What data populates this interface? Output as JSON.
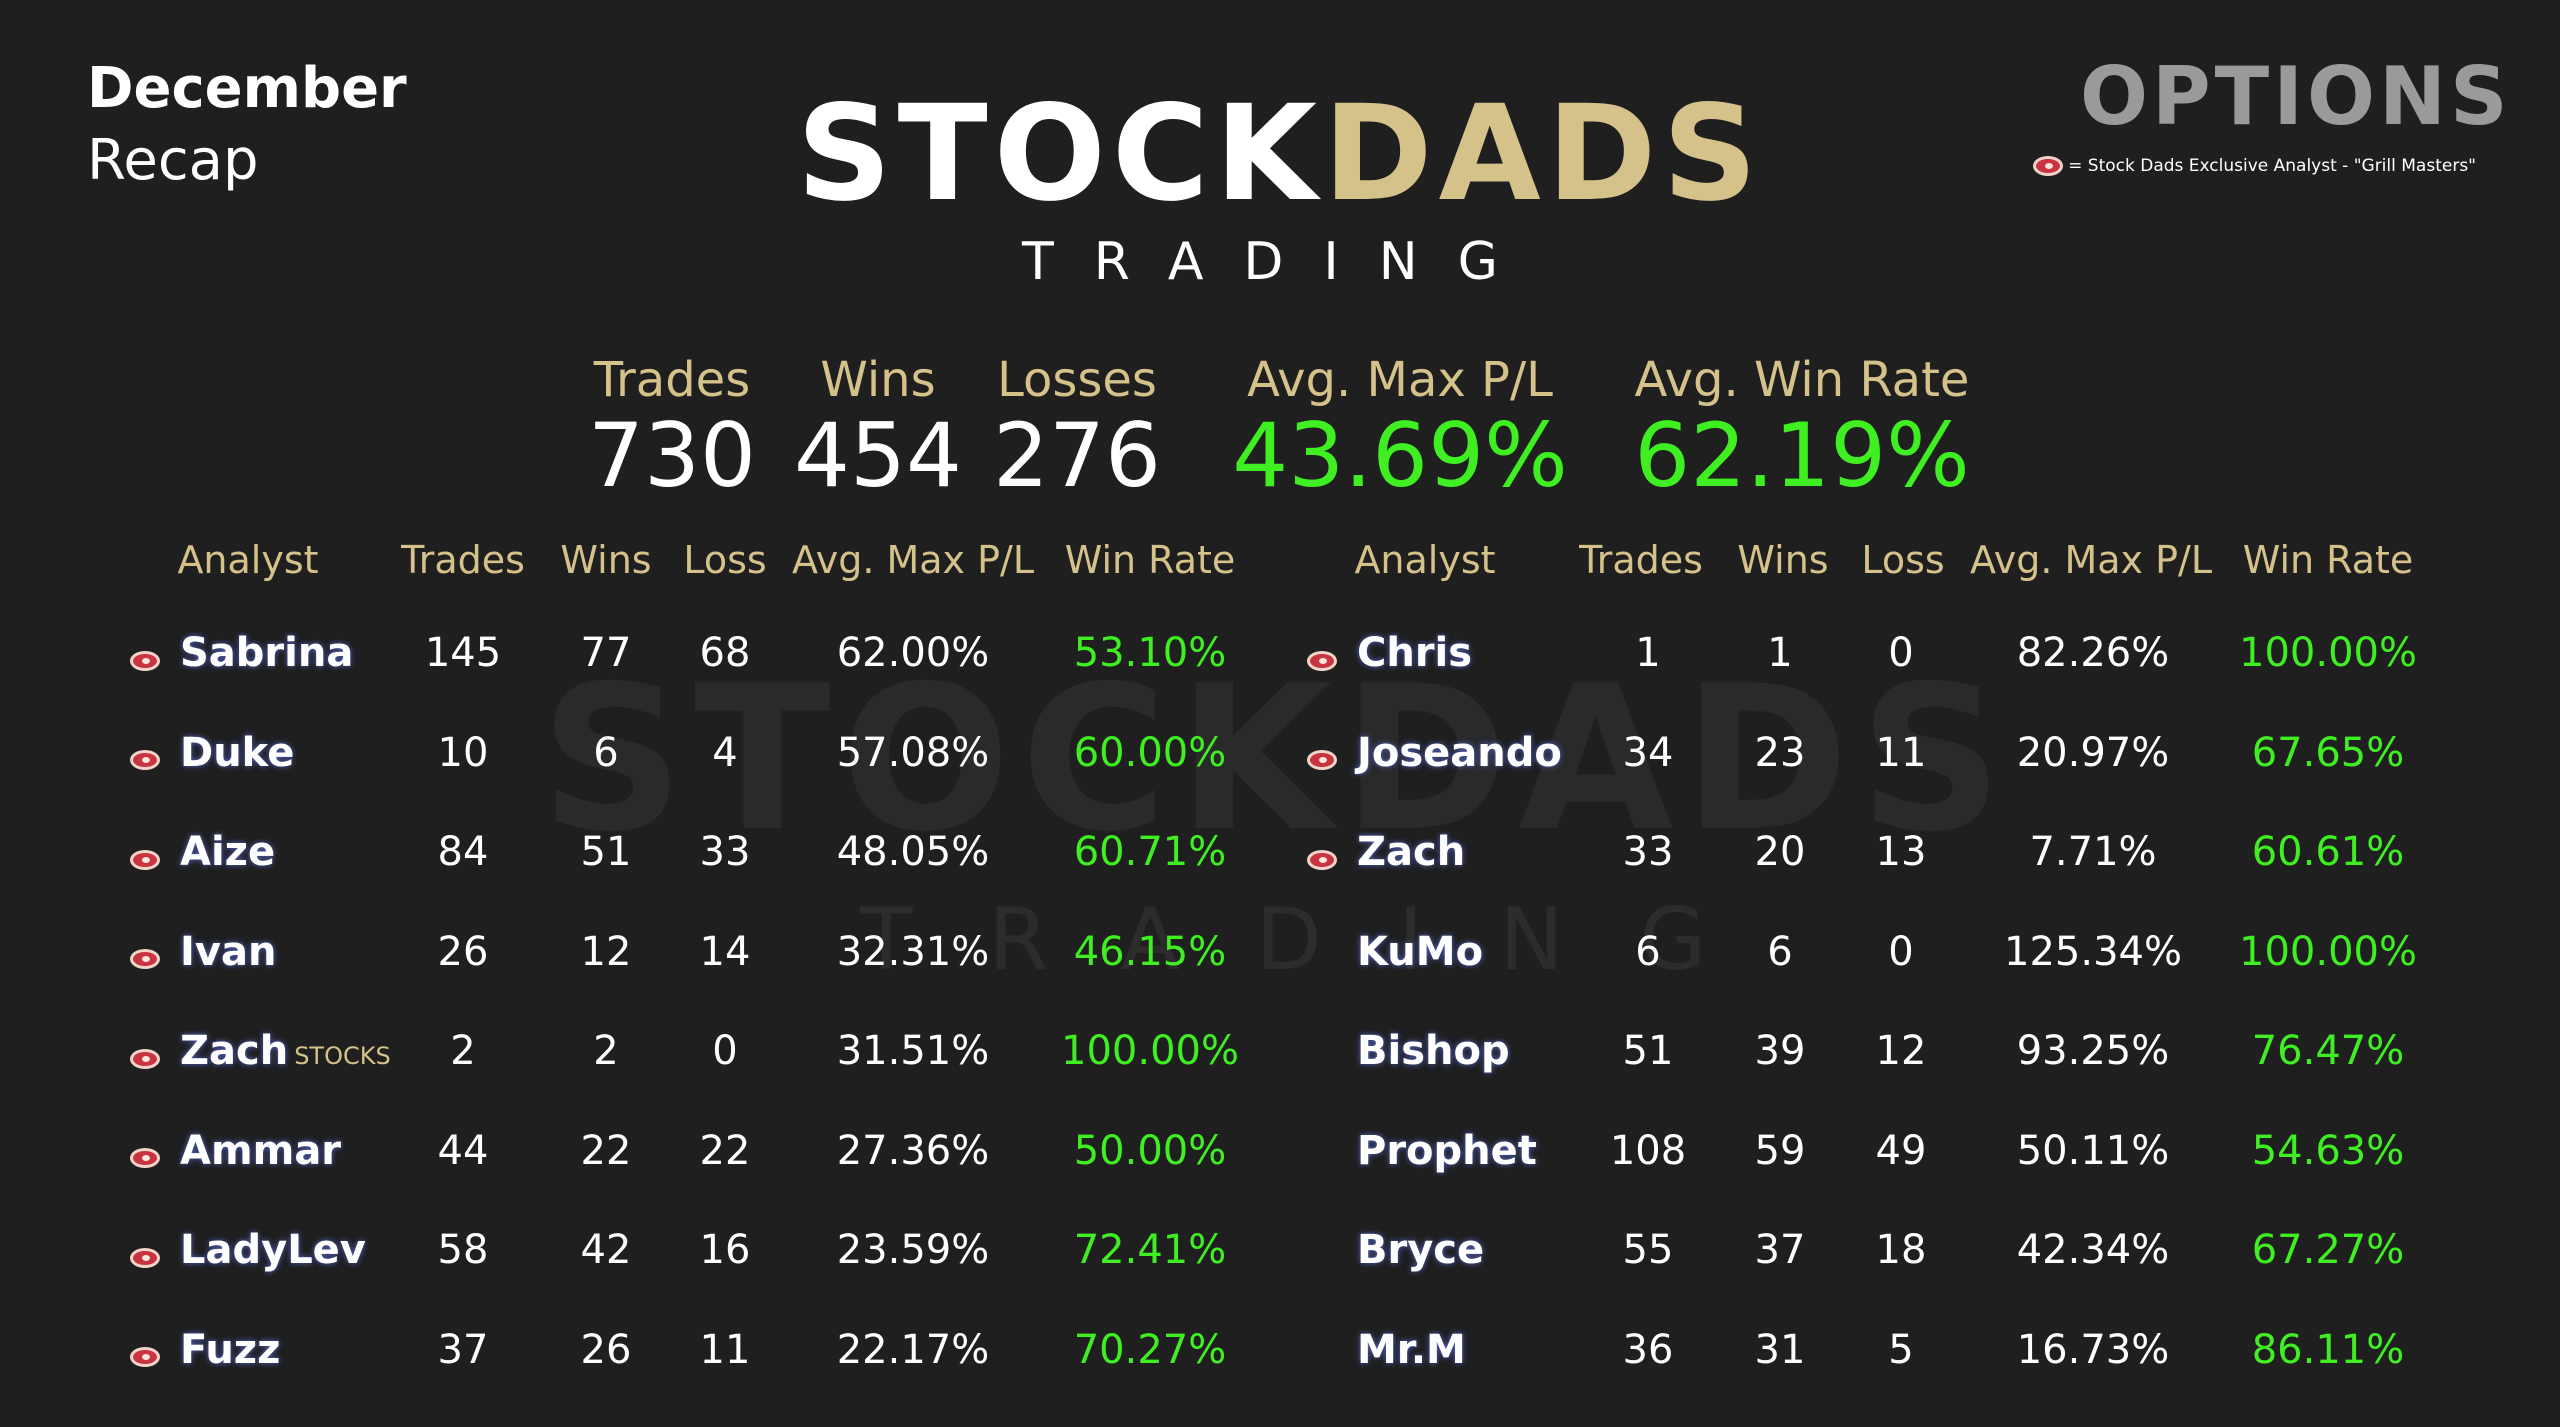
{
  "header": {
    "month": "December",
    "subtitle": "Recap"
  },
  "logo": {
    "word_left": "STOCK",
    "word_right": "DADS",
    "sub": "TRADING"
  },
  "category": "OPTIONS",
  "legend": {
    "text": "= Stock Dads Exclusive Analyst - \"Grill Masters\"",
    "icon": "steak-icon"
  },
  "summary": [
    {
      "label": "Trades",
      "value": "730"
    },
    {
      "label": "Wins",
      "value": "454"
    },
    {
      "label": "Losses",
      "value": "276"
    },
    {
      "label": "Avg. Max P/L",
      "value": "43.69%"
    },
    {
      "label": "Avg. Win Rate",
      "value": "62.19%"
    }
  ],
  "columns": [
    "Analyst",
    "Trades",
    "Wins",
    "Loss",
    "Avg. Max P/L",
    "Win Rate"
  ],
  "left_table": [
    {
      "name": "Sabrina",
      "sub": "",
      "grill": true,
      "trades": "145",
      "wins": "77",
      "loss": "68",
      "avg": "62.00%",
      "rate": "53.10%"
    },
    {
      "name": "Duke",
      "sub": "",
      "grill": true,
      "trades": "10",
      "wins": "6",
      "loss": "4",
      "avg": "57.08%",
      "rate": "60.00%"
    },
    {
      "name": "Aize",
      "sub": "",
      "grill": true,
      "trades": "84",
      "wins": "51",
      "loss": "33",
      "avg": "48.05%",
      "rate": "60.71%"
    },
    {
      "name": "Ivan",
      "sub": "",
      "grill": true,
      "trades": "26",
      "wins": "12",
      "loss": "14",
      "avg": "32.31%",
      "rate": "46.15%"
    },
    {
      "name": "Zach",
      "sub": "STOCKS",
      "grill": true,
      "trades": "2",
      "wins": "2",
      "loss": "0",
      "avg": "31.51%",
      "rate": "100.00%"
    },
    {
      "name": "Ammar",
      "sub": "",
      "grill": true,
      "trades": "44",
      "wins": "22",
      "loss": "22",
      "avg": "27.36%",
      "rate": "50.00%"
    },
    {
      "name": "LadyLev",
      "sub": "",
      "grill": true,
      "trades": "58",
      "wins": "42",
      "loss": "16",
      "avg": "23.59%",
      "rate": "72.41%"
    },
    {
      "name": "Fuzz",
      "sub": "",
      "grill": true,
      "trades": "37",
      "wins": "26",
      "loss": "11",
      "avg": "22.17%",
      "rate": "70.27%"
    }
  ],
  "right_table": [
    {
      "name": "Chris",
      "sub": "",
      "grill": true,
      "trades": "1",
      "wins": "1",
      "loss": "0",
      "avg": "82.26%",
      "rate": "100.00%"
    },
    {
      "name": "Joseando",
      "sub": "",
      "grill": true,
      "trades": "34",
      "wins": "23",
      "loss": "11",
      "avg": "20.97%",
      "rate": "67.65%"
    },
    {
      "name": "Zach",
      "sub": "",
      "grill": true,
      "trades": "33",
      "wins": "20",
      "loss": "13",
      "avg": "7.71%",
      "rate": "60.61%"
    },
    {
      "name": "KuMo",
      "sub": "",
      "grill": false,
      "trades": "6",
      "wins": "6",
      "loss": "0",
      "avg": "125.34%",
      "rate": "100.00%"
    },
    {
      "name": "Bishop",
      "sub": "",
      "grill": false,
      "trades": "51",
      "wins": "39",
      "loss": "12",
      "avg": "93.25%",
      "rate": "76.47%"
    },
    {
      "name": "Prophet",
      "sub": "",
      "grill": false,
      "trades": "108",
      "wins": "59",
      "loss": "49",
      "avg": "50.11%",
      "rate": "54.63%"
    },
    {
      "name": "Bryce",
      "sub": "",
      "grill": false,
      "trades": "55",
      "wins": "37",
      "loss": "18",
      "avg": "42.34%",
      "rate": "67.27%"
    },
    {
      "name": "Mr.M",
      "sub": "",
      "grill": false,
      "trades": "36",
      "wins": "31",
      "loss": "5",
      "avg": "16.73%",
      "rate": "86.11%"
    }
  ],
  "colors": {
    "background": "#1f1f1f",
    "gold": "#d5c28a",
    "green": "#3fef22",
    "gray": "#9a9a9a"
  }
}
